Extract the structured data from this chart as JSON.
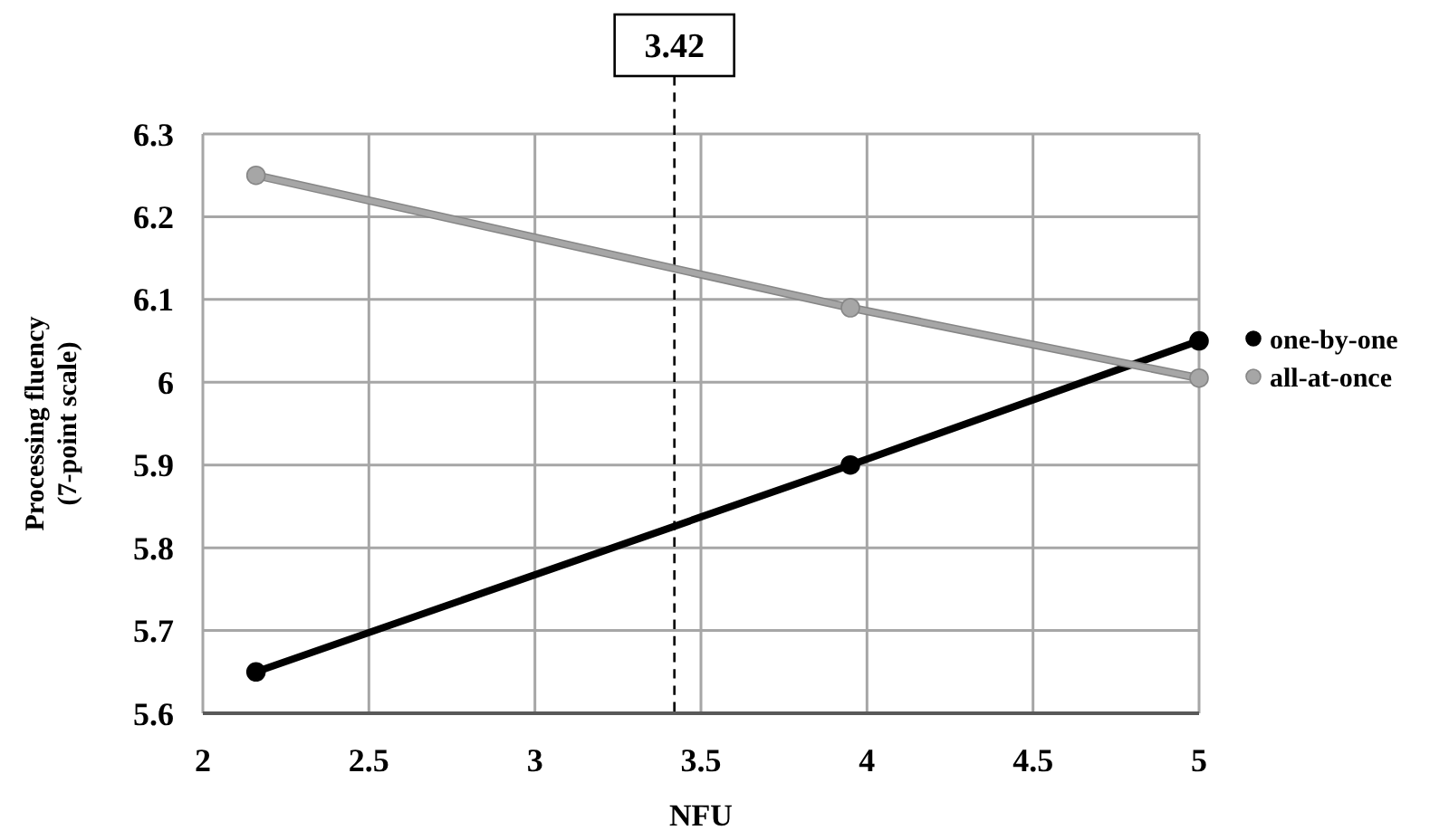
{
  "chart_data": {
    "type": "line",
    "xlabel": "NFU",
    "ylabel": "Processing fluency\n(7-point scale)",
    "x": [
      2.16,
      3.95,
      5
    ],
    "series": [
      {
        "name": "one-by-one",
        "color": "#000000",
        "values": [
          5.65,
          5.9,
          6.05
        ]
      },
      {
        "name": "all-at-once",
        "color": "#a6a6a6",
        "values": [
          6.25,
          6.09,
          6.005
        ]
      }
    ],
    "xlim": [
      2,
      5
    ],
    "xticks": [
      2,
      2.5,
      3,
      3.5,
      4,
      4.5,
      5
    ],
    "ylim": [
      5.6,
      6.3
    ],
    "yticks": [
      5.6,
      5.7,
      5.8,
      5.9,
      6,
      6.1,
      6.2,
      6.3
    ],
    "ref_lines": [
      {
        "axis": "x",
        "value": 3.42,
        "label": "3.42",
        "color": "#000000",
        "line_style": "dashed"
      }
    ],
    "grid": true,
    "legend": "right",
    "marker": "circle",
    "line_style": "solid"
  }
}
